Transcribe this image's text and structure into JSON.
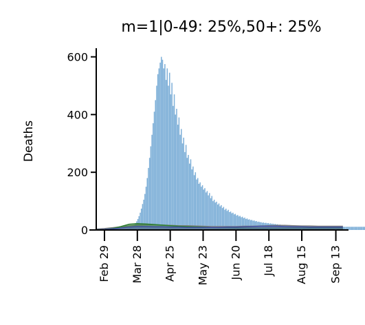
{
  "chart_data": {
    "type": "bar",
    "title": "m=1|0-49: 25%,50+: 25%",
    "ylabel": "Deaths",
    "xlabel": "",
    "ylim": [
      0,
      630
    ],
    "yticks": [
      0,
      200,
      400,
      600
    ],
    "x_start_date": "Feb 22",
    "x_tick_labels": [
      "Feb 29",
      "Mar 28",
      "Apr 25",
      "May 23",
      "Jun 20",
      "Jul 18",
      "Aug 15",
      "Sep 13"
    ],
    "x_tick_dates": [
      "2020-02-29",
      "2020-03-28",
      "2020-04-25",
      "2020-05-23",
      "2020-06-20",
      "2020-07-18",
      "2020-08-15",
      "2020-09-13"
    ],
    "bar_series": {
      "name": "Deaths",
      "color": "#7fb0d8",
      "values": [
        0,
        0,
        0,
        0,
        0,
        0,
        0,
        0,
        0,
        0,
        0,
        0,
        0,
        0,
        0,
        0,
        0,
        0,
        0,
        0,
        1,
        1,
        2,
        3,
        3,
        4,
        5,
        6,
        7,
        9,
        11,
        14,
        18,
        24,
        30,
        38,
        48,
        60,
        74,
        90,
        105,
        125,
        150,
        180,
        215,
        250,
        290,
        330,
        370,
        410,
        450,
        500,
        540,
        560,
        580,
        600,
        590,
        560,
        575,
        520,
        560,
        500,
        545,
        470,
        510,
        430,
        470,
        400,
        420,
        365,
        390,
        330,
        350,
        300,
        320,
        270,
        295,
        250,
        260,
        230,
        245,
        210,
        220,
        190,
        200,
        175,
        180,
        160,
        165,
        150,
        155,
        140,
        145,
        130,
        135,
        120,
        128,
        110,
        118,
        100,
        105,
        95,
        98,
        88,
        92,
        82,
        86,
        76,
        80,
        70,
        74,
        66,
        70,
        62,
        64,
        58,
        60,
        54,
        56,
        50,
        52,
        47,
        49,
        44,
        46,
        41,
        43,
        38,
        40,
        36,
        37,
        34,
        35,
        32,
        33,
        30,
        31,
        28,
        29,
        27,
        27,
        25,
        26,
        24,
        25,
        23,
        24,
        22,
        23,
        21,
        22,
        20,
        21,
        19,
        20,
        18,
        19,
        18,
        18,
        17,
        18,
        17,
        17,
        16,
        17,
        16,
        16,
        15,
        16,
        15,
        15,
        14,
        15,
        14,
        15,
        14,
        14,
        13,
        14,
        13,
        14,
        13,
        13,
        13,
        13,
        12,
        13,
        12,
        13,
        12,
        12,
        12,
        12,
        12,
        12,
        11,
        12,
        11,
        12,
        11,
        11,
        11,
        11,
        11,
        11,
        11,
        11,
        11,
        11,
        11,
        11,
        11,
        11,
        11,
        11,
        11,
        11,
        11,
        11,
        11,
        11,
        11,
        11,
        11,
        11,
        11,
        11,
        11,
        11,
        11
      ]
    },
    "area_series": [
      {
        "name": "model_grey",
        "color": "#808080",
        "fill": "#b9b9b9",
        "values_every_7_days": [
          3,
          5,
          8,
          11,
          14,
          17,
          18,
          18,
          17,
          16,
          15,
          15,
          14,
          13,
          12,
          12,
          12,
          12,
          13,
          13,
          14,
          15,
          16,
          16,
          15,
          14,
          14,
          13,
          13,
          13,
          13
        ]
      },
      {
        "name": "model_green",
        "color": "#2e7d32",
        "fill": "#2e7d32",
        "values_every_7_days": [
          1,
          2,
          5,
          12,
          20,
          22,
          21,
          19,
          17,
          15,
          13,
          12,
          11,
          10,
          9,
          8,
          8,
          7,
          7,
          7,
          7,
          7,
          7,
          7,
          7,
          7,
          7,
          7,
          7,
          7,
          7
        ]
      },
      {
        "name": "model_blue",
        "color": "#3f4fa0",
        "fill": "#5a66b8",
        "values_every_7_days": [
          1,
          2,
          4,
          7,
          10,
          12,
          12,
          11,
          11,
          10,
          10,
          9,
          9,
          9,
          9,
          9,
          10,
          10,
          11,
          12,
          13,
          13,
          13,
          12,
          11,
          11,
          10,
          10,
          10,
          10,
          10
        ]
      }
    ],
    "colors": {
      "bars": "#7fb0d8",
      "axis": "#000000"
    }
  }
}
